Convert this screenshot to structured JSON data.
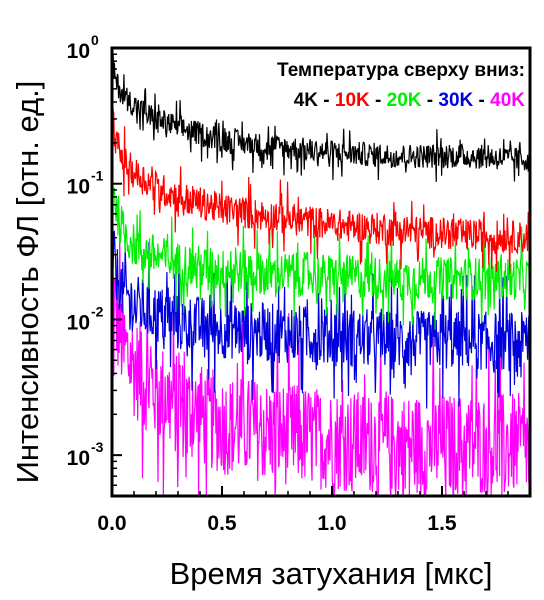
{
  "chart_data": {
    "type": "line",
    "title": "",
    "xlabel": "Время затухания [мкс]",
    "ylabel": "Интенсивность ФЛ [отн. ед.]",
    "xlim": [
      0.0,
      1.9
    ],
    "ylim": [
      0.0005,
      1.0
    ],
    "yscale": "log",
    "grid": false,
    "x_ticks": [
      {
        "value": 0.0,
        "label": "0.0"
      },
      {
        "value": 0.5,
        "label": "0.5"
      },
      {
        "value": 1.0,
        "label": "1.0"
      },
      {
        "value": 1.5,
        "label": "1.5"
      }
    ],
    "y_ticks": [
      {
        "value": 1,
        "base": "10",
        "exp": "0"
      },
      {
        "value": 0.1,
        "base": "10",
        "exp": "-1"
      },
      {
        "value": 0.01,
        "base": "10",
        "exp": "-2"
      },
      {
        "value": 0.001,
        "base": "10",
        "exp": "-3"
      }
    ],
    "legend": {
      "position": "top-right",
      "heading": "Температура сверху вниз:",
      "separator": "-",
      "entries": [
        {
          "label": "4K",
          "color": "#000000"
        },
        {
          "label": "10K",
          "color": "#ff0000"
        },
        {
          "label": "20K",
          "color": "#00ee00"
        },
        {
          "label": "30K",
          "color": "#0000dd"
        },
        {
          "label": "40K",
          "color": "#ff00ff"
        }
      ]
    },
    "series": [
      {
        "name": "4K",
        "color": "#000000",
        "x": [
          0.0,
          0.02,
          0.05,
          0.1,
          0.2,
          0.3,
          0.5,
          0.7,
          1.0,
          1.3,
          1.6,
          1.9
        ],
        "y": [
          0.8,
          0.55,
          0.45,
          0.38,
          0.3,
          0.26,
          0.21,
          0.19,
          0.17,
          0.16,
          0.16,
          0.15
        ]
      },
      {
        "name": "10K",
        "color": "#ff0000",
        "x": [
          0.0,
          0.02,
          0.05,
          0.1,
          0.2,
          0.3,
          0.5,
          0.7,
          1.0,
          1.3,
          1.6,
          1.9
        ],
        "y": [
          0.32,
          0.2,
          0.15,
          0.12,
          0.095,
          0.08,
          0.065,
          0.058,
          0.05,
          0.045,
          0.042,
          0.04
        ]
      },
      {
        "name": "20K",
        "color": "#00ee00",
        "x": [
          0.0,
          0.02,
          0.05,
          0.1,
          0.2,
          0.3,
          0.5,
          0.7,
          1.0,
          1.3,
          1.6,
          1.9
        ],
        "y": [
          0.12,
          0.065,
          0.045,
          0.035,
          0.029,
          0.026,
          0.023,
          0.022,
          0.021,
          0.02,
          0.02,
          0.02
        ]
      },
      {
        "name": "30K",
        "color": "#0000dd",
        "x": [
          0.0,
          0.02,
          0.05,
          0.1,
          0.2,
          0.3,
          0.5,
          0.7,
          1.0,
          1.3,
          1.6,
          1.9
        ],
        "y": [
          0.035,
          0.022,
          0.016,
          0.013,
          0.011,
          0.0095,
          0.0085,
          0.008,
          0.0075,
          0.007,
          0.007,
          0.0068
        ]
      },
      {
        "name": "40K",
        "color": "#ff00ff",
        "x": [
          0.0,
          0.02,
          0.05,
          0.1,
          0.2,
          0.3,
          0.5,
          0.7,
          1.0,
          1.3,
          1.6,
          1.9
        ],
        "y": [
          0.02,
          0.01,
          0.0065,
          0.0045,
          0.003,
          0.0023,
          0.0017,
          0.0015,
          0.0013,
          0.0012,
          0.0012,
          0.0012
        ]
      }
    ]
  }
}
